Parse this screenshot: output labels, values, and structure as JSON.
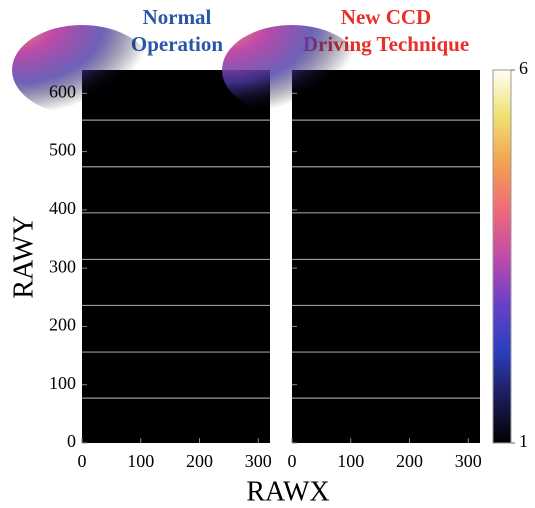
{
  "chart_data": [
    {
      "type": "heatmap",
      "title": "Normal\nOperation",
      "title_color": "#2b55a6",
      "xlim": [
        0,
        320
      ],
      "ylim": [
        0,
        640
      ],
      "xticks": [
        0,
        100,
        200,
        300
      ],
      "yticks": [
        0,
        100,
        200,
        300,
        400,
        500,
        600
      ],
      "show_ytick_labels": true,
      "xlabel": "RAWX",
      "ylabel": "RAWY",
      "background": "#000000",
      "row_lines": [
        77,
        156,
        236,
        315,
        395,
        474,
        554
      ],
      "row_line_color": "#9a9a9a"
    },
    {
      "type": "heatmap",
      "title": "New CCD\nDriving Technique",
      "title_color": "#e8302a",
      "xlim": [
        0,
        320
      ],
      "ylim": [
        0,
        640
      ],
      "xticks": [
        0,
        100,
        200,
        300
      ],
      "yticks": [
        0,
        100,
        200,
        300,
        400,
        500,
        600
      ],
      "show_ytick_labels": false,
      "background": "#000000",
      "row_lines": [
        77,
        156,
        236,
        315,
        395,
        474,
        554
      ],
      "row_line_color": "#9a9a9a",
      "colorbar": {
        "clim": [
          1,
          6
        ],
        "cticks": [
          1,
          6
        ],
        "colors": [
          "#000000",
          "#1c1c5a",
          "#2c3fc0",
          "#6a40c8",
          "#c24aa8",
          "#f06a7a",
          "#f4a050",
          "#f0e070",
          "#fffff4"
        ]
      }
    }
  ]
}
